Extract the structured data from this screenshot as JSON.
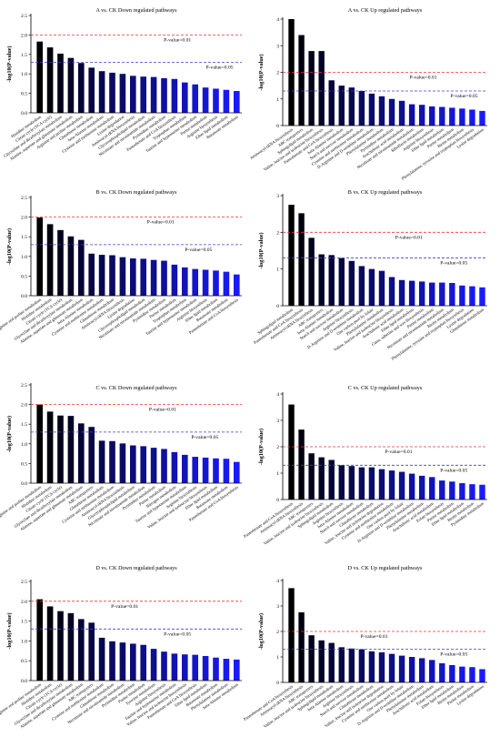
{
  "figure": {
    "ylabel": "-log10(P-value)",
    "threshold_labels": {
      "p01": "P-value=0.01",
      "p05": "P-value=0.05"
    },
    "threshold_values": {
      "p01": 2,
      "p05": 1.3
    },
    "colors": {
      "threshold_p01": "#e53935",
      "threshold_p05": "#3f3fd0",
      "bar_dark": "#000000",
      "bar_bright": "#1a1aff",
      "axis": "#000000"
    }
  },
  "chart_data": [
    {
      "type": "bar",
      "title": "A vs. CK Down regulated pathways",
      "ylim": [
        0,
        2.5
      ],
      "yticks": [
        0.0,
        0.5,
        1.0,
        1.5,
        2.0,
        2.5
      ],
      "categories": [
        "Histidine metabolism",
        "Citrate cycle (TCA cycle)",
        "Glyoxylate and dicarboxylate metabolism",
        "Alanine, aspartate and glutamate metabolism",
        "Arginine and proline metabolism",
        "Glutathione metabolism",
        "beta-Alanine metabolism",
        "Cysteine and methionine metabolism",
        "Lysine degradation",
        "Aminoacyl-tRNA biosynthesis",
        "Glycerophospholipid metabolism",
        "Nicotinate and nicotinamide metabolism",
        "Pyrimidine metabolism",
        "Pantothenate and CoA biosynthesis",
        "Tryptophan metabolism",
        "Taurine and hypotaurine metabolism",
        "Purine metabolism",
        "Arginine biosynthesis",
        "Ether lipid metabolism",
        "Butanoate metabolism"
      ],
      "values": [
        1.83,
        1.68,
        1.52,
        1.41,
        1.28,
        1.16,
        1.07,
        1.03,
        1.0,
        0.95,
        0.93,
        0.92,
        0.89,
        0.87,
        0.78,
        0.73,
        0.65,
        0.62,
        0.59,
        0.56
      ]
    },
    {
      "type": "bar",
      "title": "A vs. CK Up regulated pathways",
      "ylim": [
        0,
        4
      ],
      "yticks": [
        0,
        1,
        2,
        3,
        4
      ],
      "categories": [
        "Aminoacyl-tRNA biosynthesis",
        "ABC transporters",
        "Sphingolipid metabolism",
        "Valine, leucine and isoleucine biosynthesis",
        "Pantothenate and CoA biosynthesis",
        "beta-Alanine metabolism",
        "Starch and sucrose metabolism",
        "Cysteine and methionine metabolism",
        "D-Arginine and D-ornithine metabolism",
        "Phenylalanine metabolism",
        "Pyrimidine metabolism",
        "Arachidonic acid metabolism",
        "Nicotinate and nicotinamide metabolism",
        "Riboflavin metabolism",
        "Arginine biosynthesis",
        "Ether lipid metabolism",
        "Purine metabolism",
        "Biotin metabolism",
        "Phenylalanine, tyrosine and tryptophan biosynthesis",
        "Lysine degradation"
      ],
      "values": [
        4.0,
        3.4,
        2.8,
        2.8,
        1.7,
        1.5,
        1.43,
        1.3,
        1.2,
        1.1,
        1.0,
        0.93,
        0.8,
        0.78,
        0.72,
        0.7,
        0.67,
        0.64,
        0.6,
        0.55
      ]
    },
    {
      "type": "bar",
      "title": "B vs. CK Down regulated pathways",
      "ylim": [
        0,
        2.5
      ],
      "yticks": [
        0.0,
        0.5,
        1.0,
        1.5,
        2.0,
        2.5
      ],
      "categories": [
        "Arginine and proline metabolism",
        "Histidine metabolism",
        "Citrate cycle (TCA cycle)",
        "Glyoxylate and dicarboxylate metabolism",
        "Alanine, aspartate and glutamate metabolism",
        "beta-Alanine metabolism",
        "Cysteine and methionine metabolism",
        "Glutathione metabolism",
        "Aminoacyl-tRNA biosynthesis",
        "Lysine degradation",
        "Glycerophospholipid metabolism",
        "Nicotinate and nicotinamide metabolism",
        "Pyrimidine metabolism",
        "Purine metabolism",
        "Tryptophan metabolism",
        "Taurine and hypotaurine metabolism",
        "Arginine biosynthesis",
        "Ether lipid metabolism",
        "Butanoate metabolism",
        "Pantothenate and CoA biosynthesis"
      ],
      "values": [
        1.99,
        1.82,
        1.67,
        1.51,
        1.42,
        1.07,
        1.04,
        1.03,
        0.98,
        0.95,
        0.94,
        0.91,
        0.89,
        0.79,
        0.72,
        0.68,
        0.66,
        0.64,
        0.61,
        0.54
      ]
    },
    {
      "type": "bar",
      "title": "B vs. CK Up regulated pathways",
      "ylim": [
        0,
        3
      ],
      "yticks": [
        0,
        1,
        2,
        3
      ],
      "categories": [
        "Sphingolipid metabolism",
        "Pantothenate and CoA biosynthesis",
        "Aminoacyl-tRNA biosynthesis",
        "ABC transporters",
        "beta-Alanine metabolism",
        "Starch and sucrose metabolism",
        "Arginine biosynthesis",
        "D-Arginine and D-ornithine metabolism",
        "One carbon pool by folate",
        "Phenylalanine metabolism",
        "Valine, leucine and isoleucine biosynthesis",
        "Arachidonic acid metabolism",
        "Ether lipid metabolism",
        "Cutin, suberine and wax biosynthesis",
        "Purine metabolism",
        "Nicotinate and nicotinamide metabolism",
        "Biotin metabolism",
        "Phenylalanine, tyrosine and tryptophan biosynthesis",
        "Lysine degradation",
        "Glutathione metabolism"
      ],
      "values": [
        2.75,
        2.52,
        1.85,
        1.4,
        1.38,
        1.3,
        1.22,
        1.08,
        1.0,
        0.95,
        0.78,
        0.7,
        0.68,
        0.66,
        0.63,
        0.63,
        0.62,
        0.55,
        0.53,
        0.5
      ]
    },
    {
      "type": "bar",
      "title": "C vs. CK Down regulated pathways",
      "ylim": [
        0,
        2.5
      ],
      "yticks": [
        0.0,
        0.5,
        1.0,
        1.5,
        2.0,
        2.5
      ],
      "categories": [
        "Arginine and proline metabolism",
        "Histidine metabolism",
        "Citrate cycle (TCA cycle)",
        "Glyoxylate and dicarboxylate metabolism",
        "Alanine, aspartate and glutamate metabolism",
        "ABC transporters",
        "Glutathione metabolism",
        "Cysteine and methionine metabolism",
        "Aminoacyl-tRNA biosynthesis",
        "Glycerophospholipid metabolism",
        "Nicotinate and nicotinamide metabolism",
        "Pyrimidine metabolism",
        "Purine metabolism",
        "Nitrogen metabolism",
        "Taurine and hypotaurine metabolism",
        "Arginine biosynthesis",
        "Valine, leucine and isoleucine biosynthesis",
        "Ether lipid metabolism",
        "Butanoate metabolism",
        "Pantothenate and CoA biosynthesis"
      ],
      "values": [
        2.0,
        1.82,
        1.72,
        1.71,
        1.52,
        1.43,
        1.08,
        1.07,
        1.01,
        0.96,
        0.94,
        0.9,
        0.87,
        0.79,
        0.72,
        0.67,
        0.65,
        0.63,
        0.62,
        0.54
      ]
    },
    {
      "type": "bar",
      "title": "C vs. CK Up regulated pathways",
      "ylim": [
        0,
        4
      ],
      "yticks": [
        0,
        1,
        2,
        3,
        4
      ],
      "categories": [
        "Pantothenate and CoA biosynthesis",
        "Aminoacyl-tRNA biosynthesis",
        "ABC transporters",
        "Valine, leucine and isoleucine biosynthesis",
        "Sphingolipid metabolism",
        "Arginine biosynthesis",
        "beta-Alanine metabolism",
        "Starch and sucrose metabolism",
        "Glutathione metabolism",
        "Valine, leucine and isoleucine degradation",
        "Cysteine and methionine metabolism",
        "One carbon pool by folate",
        "D-Arginine and D-ornithine metabolism",
        "Phenylalanine metabolism",
        "Arachidonic acid metabolism",
        "Folate biosynthesis",
        "Purine metabolism",
        "Ether lipid metabolism",
        "Biotin metabolism",
        "Pyrimidine metabolism"
      ],
      "values": [
        3.6,
        2.65,
        1.75,
        1.6,
        1.5,
        1.3,
        1.27,
        1.22,
        1.22,
        1.15,
        1.1,
        1.05,
        0.98,
        0.9,
        0.85,
        0.72,
        0.68,
        0.62,
        0.58,
        0.56
      ]
    },
    {
      "type": "bar",
      "title": "D vs. CK Down regulated pathways",
      "ylim": [
        0,
        2.5
      ],
      "yticks": [
        0.0,
        0.5,
        1.0,
        1.5,
        2.0,
        2.5
      ],
      "categories": [
        "Arginine and proline metabolism",
        "Histidine metabolism",
        "Citrate cycle (TCA cycle)",
        "Glyoxylate and dicarboxylate metabolism",
        "Alanine, aspartate and glutamate metabolism",
        "ABC transporters",
        "Cysteine and methionine metabolism",
        "Glutathione metabolism",
        "Nicotinate and nicotinamide metabolism",
        "Pyrimidine metabolism",
        "Purine metabolism",
        "Tyrosine metabolism",
        "Arginine biosynthesis",
        "Taurine and hypotaurine metabolism",
        "Valine, leucine and isoleucine biosynthesis",
        "Pantothenate and CoA biosynthesis",
        "Ether lipid metabolism",
        "Butanoate metabolism",
        "Phenylalanine metabolism",
        "beta-Alanine metabolism"
      ],
      "values": [
        2.05,
        1.87,
        1.75,
        1.7,
        1.55,
        1.46,
        1.08,
        0.99,
        0.96,
        0.93,
        0.9,
        0.8,
        0.73,
        0.68,
        0.66,
        0.65,
        0.62,
        0.58,
        0.55,
        0.53
      ]
    },
    {
      "type": "bar",
      "title": "D vs. CK Up regulated pathways",
      "ylim": [
        0,
        4
      ],
      "yticks": [
        0,
        1,
        2,
        3,
        4
      ],
      "categories": [
        "Pantothenate and CoA biosynthesis",
        "Aminoacyl-tRNA biosynthesis",
        "ABC transporters",
        "Valine, leucine and isoleucine biosynthesis",
        "Sphingolipid metabolism",
        "beta-Alanine metabolism",
        "Arginine biosynthesis",
        "Starch and sucrose metabolism",
        "Glutathione metabolism",
        "Valine, leucine and isoleucine degradation",
        "Cysteine and methionine metabolism",
        "One carbon pool by folate",
        "D-Arginine and D-ornithine metabolism",
        "Phenylalanine metabolism",
        "Arachidonic acid metabolism",
        "Folate biosynthesis",
        "Ether lipid metabolism",
        "Biotin metabolism",
        "Purine metabolism",
        "Lysine degradation"
      ],
      "values": [
        3.7,
        2.75,
        1.85,
        1.65,
        1.55,
        1.38,
        1.33,
        1.3,
        1.22,
        1.18,
        1.12,
        1.05,
        1.0,
        0.95,
        0.88,
        0.75,
        0.68,
        0.62,
        0.6,
        0.52
      ]
    }
  ]
}
